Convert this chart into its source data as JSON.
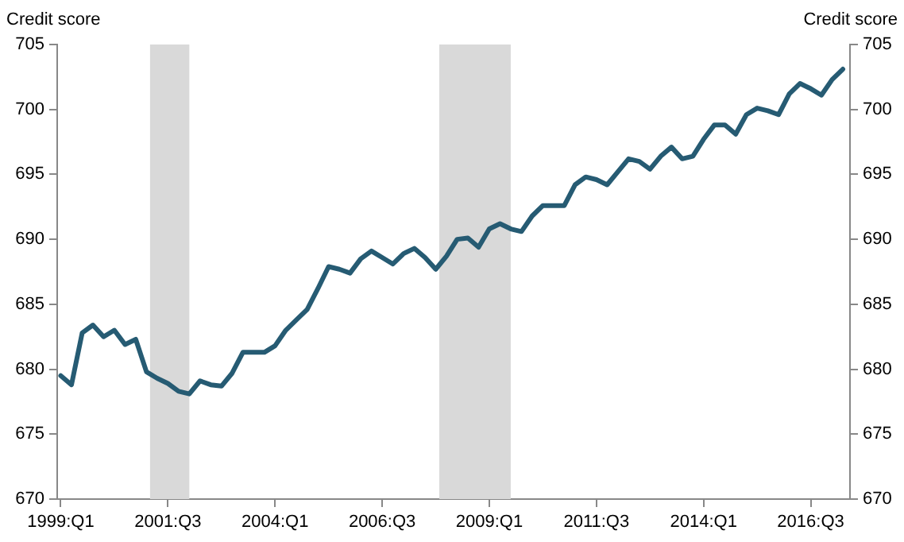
{
  "chart_data": {
    "type": "line",
    "ylabel": "Credit score",
    "y2label": "Credit score",
    "x": [
      "1999-01",
      "1999-04",
      "1999-07",
      "1999-10",
      "2000-01",
      "2000-04",
      "2000-07",
      "2000-10",
      "2001-01",
      "2001-04",
      "2001-07",
      "2001-10",
      "2002-01",
      "2002-04",
      "2002-07",
      "2002-10",
      "2003-01",
      "2003-04",
      "2003-07",
      "2003-10",
      "2004-01",
      "2004-04",
      "2004-07",
      "2004-10",
      "2005-01",
      "2005-04",
      "2005-07",
      "2005-10",
      "2006-01",
      "2006-04",
      "2006-07",
      "2006-10",
      "2007-01",
      "2007-04",
      "2007-07",
      "2007-10",
      "2008-01",
      "2008-04",
      "2008-07",
      "2008-10",
      "2009-01",
      "2009-04",
      "2009-07",
      "2009-10",
      "2010-01",
      "2010-04",
      "2010-07",
      "2010-10",
      "2011-01",
      "2011-04",
      "2011-07",
      "2011-10",
      "2012-01",
      "2012-04",
      "2012-07",
      "2012-10",
      "2013-01",
      "2013-04",
      "2013-07",
      "2013-10",
      "2014-01",
      "2014-04",
      "2014-07",
      "2014-10",
      "2015-01",
      "2015-04",
      "2015-07",
      "2015-10",
      "2016-01",
      "2016-04",
      "2016-07",
      "2016-10",
      "2017-01",
      "2017-04"
    ],
    "series": [
      {
        "color": "#265b73",
        "values": [
          679.5,
          678.8,
          682.8,
          683.4,
          682.5,
          683.0,
          681.9,
          682.3,
          679.8,
          679.3,
          678.9,
          678.3,
          678.1,
          679.1,
          678.8,
          678.7,
          679.7,
          681.3,
          681.3,
          681.3,
          681.8,
          683.0,
          683.8,
          684.6,
          686.2,
          687.9,
          687.7,
          687.4,
          688.5,
          689.1,
          688.6,
          688.1,
          688.9,
          689.3,
          688.6,
          687.7,
          688.7,
          690.0,
          690.1,
          689.4,
          690.8,
          691.2,
          690.8,
          690.6,
          691.8,
          692.6,
          692.6,
          692.6,
          694.2,
          694.8,
          694.6,
          694.2,
          695.2,
          696.2,
          696.0,
          695.4,
          696.4,
          697.1,
          696.2,
          696.4,
          697.7,
          698.8,
          698.8,
          698.1,
          699.6,
          700.1,
          699.9,
          699.6,
          701.2,
          702.0,
          701.6,
          701.1,
          702.3,
          703.1
        ]
      }
    ],
    "xlim": [
      "1998-12",
      "2017-06"
    ],
    "xticks": [
      {
        "value": "1999-01",
        "label": "1999:Q1"
      },
      {
        "value": "2001-07",
        "label": "2001:Q3"
      },
      {
        "value": "2004-01",
        "label": "2004:Q1"
      },
      {
        "value": "2006-07",
        "label": "2006:Q3"
      },
      {
        "value": "2009-01",
        "label": "2009:Q1"
      },
      {
        "value": "2011-07",
        "label": "2011:Q3"
      },
      {
        "value": "2014-01",
        "label": "2014:Q1"
      },
      {
        "value": "2016-07",
        "label": "2016:Q3"
      }
    ],
    "ylim": [
      670,
      705
    ],
    "yticks": [
      670,
      675,
      680,
      685,
      690,
      695,
      700,
      705
    ],
    "y2lim": [
      670,
      705
    ],
    "y2ticks": [
      670,
      675,
      680,
      685,
      690,
      695,
      700,
      705
    ],
    "bands": [
      {
        "axis": "x",
        "from": "2001-02",
        "to": "2002-01",
        "color": "#d9d9d9"
      },
      {
        "axis": "x",
        "from": "2007-11",
        "to": "2009-07",
        "color": "#d9d9d9"
      }
    ],
    "grid": false,
    "legend": false,
    "marker": "none",
    "line_style": "solid"
  }
}
